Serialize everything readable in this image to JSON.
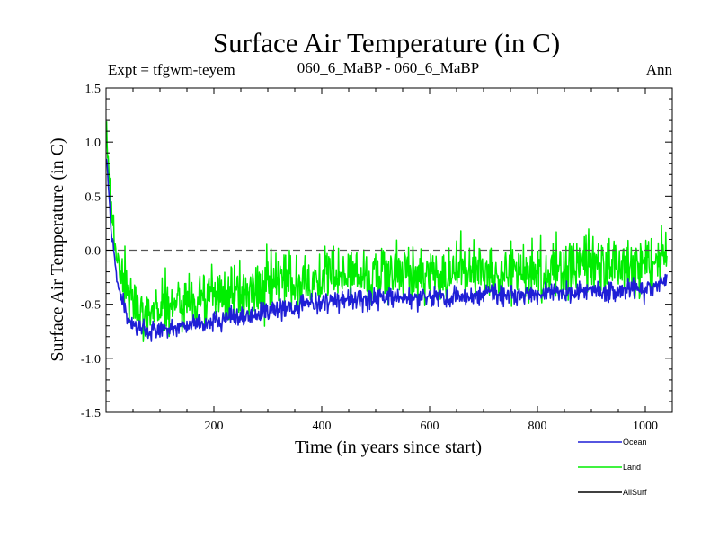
{
  "chart_data": {
    "type": "line",
    "title": "Surface Air Temperature (in C)",
    "subtitle_left": "Expt = tfgwm-teyem",
    "subtitle_center": "060_6_MaBP - 060_6_MaBP",
    "subtitle_right": "Ann",
    "xlabel": "Time (in years since start)",
    "ylabel": "Surface Air Temperature (in C)",
    "xlim": [
      0,
      1050
    ],
    "ylim": [
      -1.5,
      1.5
    ],
    "x_ticks": [
      200,
      400,
      600,
      800,
      1000
    ],
    "y_ticks": [
      -1.5,
      -1.0,
      -0.5,
      0.0,
      0.5,
      1.0,
      1.5
    ],
    "y_tick_labels": [
      "-1.5",
      "-1.0",
      "-0.5",
      "0.0",
      "0.5",
      "1.0",
      "1.5"
    ],
    "reference_line": 0.0,
    "legend_position": "bottom-right",
    "series": [
      {
        "name": "Ocean",
        "color": "#1f1fd6",
        "x_step": 10,
        "values": [
          0.95,
          0.15,
          -0.25,
          -0.45,
          -0.62,
          -0.68,
          -0.72,
          -0.75,
          -0.78,
          -0.76,
          -0.74,
          -0.73,
          -0.72,
          -0.72,
          -0.71,
          -0.7,
          -0.68,
          -0.68,
          -0.68,
          -0.67,
          -0.66,
          -0.65,
          -0.63,
          -0.62,
          -0.63,
          -0.64,
          -0.62,
          -0.6,
          -0.58,
          -0.59,
          -0.56,
          -0.55,
          -0.54,
          -0.53,
          -0.55,
          -0.52,
          -0.5,
          -0.49,
          -0.48,
          -0.5,
          -0.49,
          -0.47,
          -0.46,
          -0.45,
          -0.47,
          -0.46,
          -0.45,
          -0.44,
          -0.46,
          -0.47,
          -0.45,
          -0.44,
          -0.45,
          -0.44,
          -0.43,
          -0.44,
          -0.45,
          -0.44,
          -0.43,
          -0.44,
          -0.45,
          -0.43,
          -0.42,
          -0.44,
          -0.45,
          -0.44,
          -0.43,
          -0.42,
          -0.43,
          -0.44,
          -0.4,
          -0.38,
          -0.4,
          -0.42,
          -0.41,
          -0.43,
          -0.44,
          -0.43,
          -0.41,
          -0.4,
          -0.42,
          -0.41,
          -0.4,
          -0.39,
          -0.38,
          -0.4,
          -0.41,
          -0.39,
          -0.38,
          -0.37,
          -0.36,
          -0.38,
          -0.4,
          -0.39,
          -0.38,
          -0.37,
          -0.38,
          -0.36,
          -0.35,
          -0.37,
          -0.38,
          -0.36,
          -0.34,
          -0.3,
          -0.25
        ],
        "noise": 0.09
      },
      {
        "name": "Land",
        "color": "#00ee00",
        "x_step": 10,
        "values": [
          1.2,
          0.3,
          -0.05,
          -0.25,
          -0.42,
          -0.5,
          -0.54,
          -0.55,
          -0.55,
          -0.53,
          -0.52,
          -0.5,
          -0.5,
          -0.49,
          -0.48,
          -0.47,
          -0.45,
          -0.46,
          -0.45,
          -0.44,
          -0.42,
          -0.41,
          -0.4,
          -0.39,
          -0.4,
          -0.41,
          -0.38,
          -0.36,
          -0.35,
          -0.36,
          -0.33,
          -0.32,
          -0.31,
          -0.3,
          -0.32,
          -0.29,
          -0.27,
          -0.26,
          -0.25,
          -0.27,
          -0.26,
          -0.24,
          -0.23,
          -0.22,
          -0.24,
          -0.23,
          -0.22,
          -0.21,
          -0.23,
          -0.24,
          -0.22,
          -0.21,
          -0.22,
          -0.21,
          -0.2,
          -0.21,
          -0.22,
          -0.21,
          -0.2,
          -0.21,
          -0.22,
          -0.2,
          -0.19,
          -0.21,
          -0.22,
          -0.21,
          -0.2,
          -0.19,
          -0.2,
          -0.21,
          -0.17,
          -0.15,
          -0.17,
          -0.19,
          -0.18,
          -0.2,
          -0.21,
          -0.2,
          -0.18,
          -0.17,
          -0.19,
          -0.18,
          -0.17,
          -0.16,
          -0.15,
          -0.17,
          -0.18,
          -0.16,
          -0.15,
          -0.14,
          -0.13,
          -0.15,
          -0.17,
          -0.16,
          -0.15,
          -0.14,
          -0.15,
          -0.13,
          -0.12,
          -0.14,
          -0.15,
          -0.13,
          -0.11,
          -0.05,
          0.05
        ],
        "noise": 0.26
      },
      {
        "name": "AllSurf",
        "color": "#000000",
        "x_step": 10,
        "values": [],
        "noise": 0
      }
    ]
  }
}
